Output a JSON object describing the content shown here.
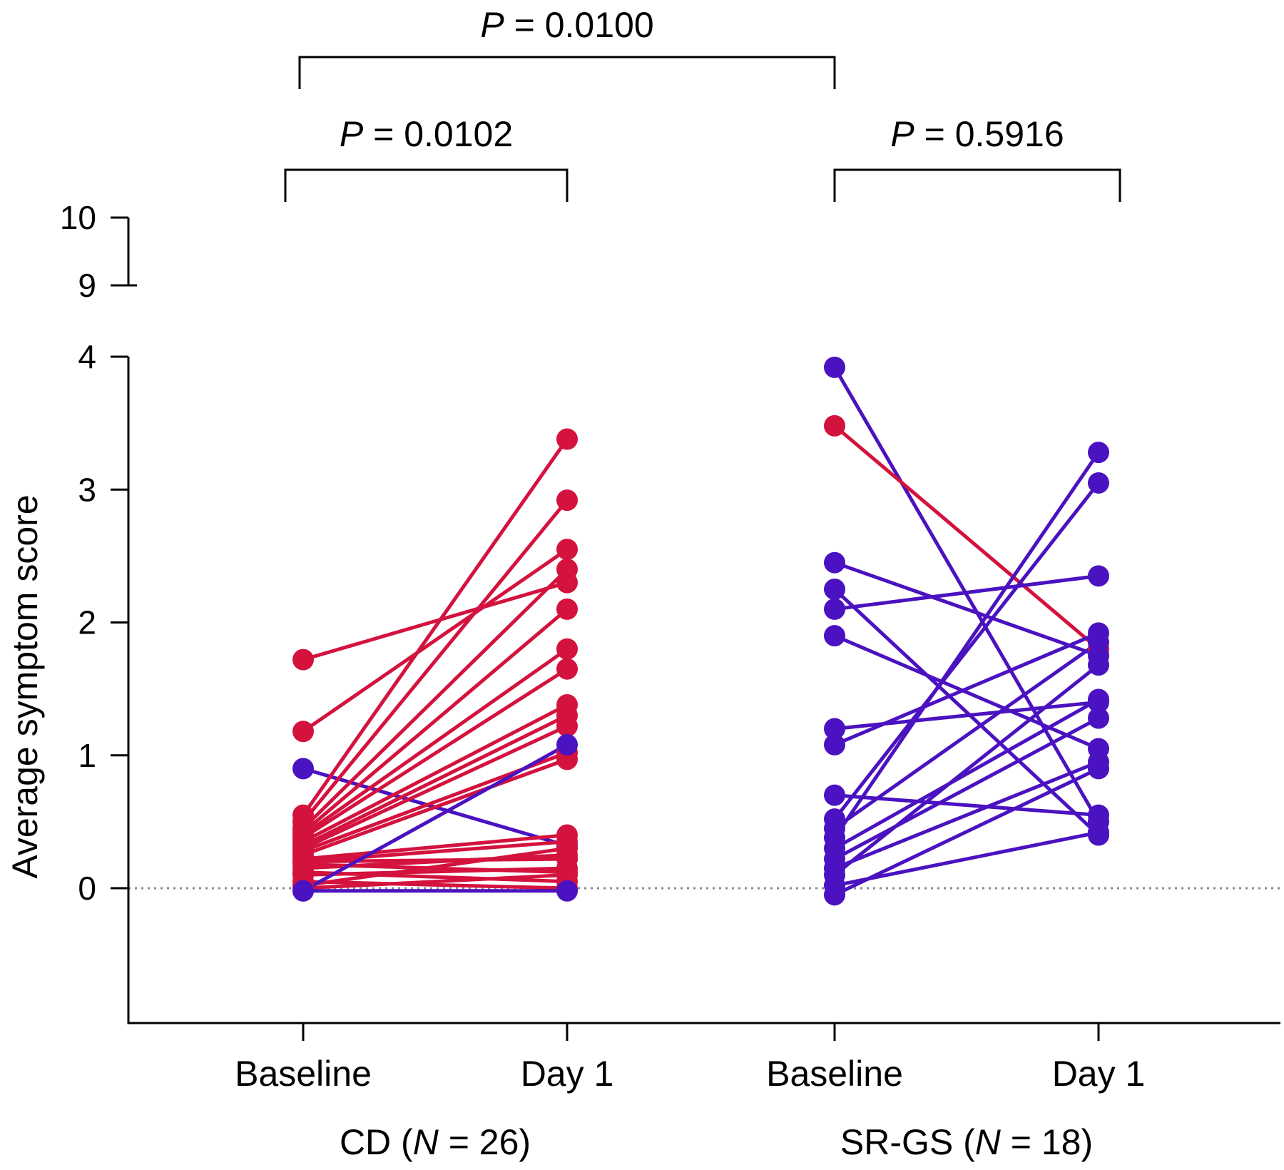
{
  "chart_data": {
    "type": "line",
    "title": "",
    "ylabel": "Average symptom score",
    "ylim": [
      -1,
      10
    ],
    "axis_break": [
      4,
      9
    ],
    "yticks_lower": [
      {
        "value": 0,
        "label": "0"
      },
      {
        "value": 1,
        "label": "1"
      },
      {
        "value": 2,
        "label": "2"
      },
      {
        "value": 3,
        "label": "3"
      },
      {
        "value": 4,
        "label": "4"
      }
    ],
    "yticks_upper": [
      {
        "value": 9,
        "label": "9"
      },
      {
        "value": 10,
        "label": "10"
      }
    ],
    "reference_line": 0,
    "categories": [
      "Baseline",
      "Day 1",
      "Baseline",
      "Day 1"
    ],
    "groups": [
      {
        "label_prefix": "CD (",
        "label_n": "N",
        "label_suffix": " = 26)"
      },
      {
        "label_prefix": "SR-GS (",
        "label_n": "N",
        "label_suffix": " = 18)"
      }
    ],
    "comparisons": [
      {
        "p_letter": "P",
        "p_value": " = 0.0100",
        "between": [
          "CD Baseline",
          "SR-GS Baseline"
        ]
      },
      {
        "p_letter": "P",
        "p_value": " = 0.0102",
        "between": [
          "CD Baseline",
          "CD Day 1"
        ]
      },
      {
        "p_letter": "P",
        "p_value": " = 0.5916",
        "between": [
          "SR-GS Baseline",
          "SR-GS Day 1"
        ]
      }
    ],
    "colors": {
      "red": "#d4123e",
      "blue": "#4a12c0"
    },
    "cd_pairs": [
      {
        "baseline": 1.72,
        "day1": 2.3,
        "color": "red"
      },
      {
        "baseline": 1.18,
        "day1": 2.55,
        "color": "red"
      },
      {
        "baseline": 0.9,
        "day1": 0.32,
        "color": "blue"
      },
      {
        "baseline": 0.55,
        "day1": 3.38,
        "color": "red"
      },
      {
        "baseline": 0.5,
        "day1": 2.92,
        "color": "red"
      },
      {
        "baseline": 0.45,
        "day1": 2.4,
        "color": "red"
      },
      {
        "baseline": 0.42,
        "day1": 2.1,
        "color": "red"
      },
      {
        "baseline": 0.4,
        "day1": 1.8,
        "color": "red"
      },
      {
        "baseline": 0.38,
        "day1": 1.65,
        "color": "red"
      },
      {
        "baseline": 0.35,
        "day1": 1.38,
        "color": "red"
      },
      {
        "baseline": 0.32,
        "day1": 1.3,
        "color": "red"
      },
      {
        "baseline": 0.3,
        "day1": 1.22,
        "color": "red"
      },
      {
        "baseline": 0.28,
        "day1": 1.02,
        "color": "red"
      },
      {
        "baseline": 0.25,
        "day1": 0.97,
        "color": "red"
      },
      {
        "baseline": 0.22,
        "day1": 0.4,
        "color": "red"
      },
      {
        "baseline": 0.2,
        "day1": 0.35,
        "color": "red"
      },
      {
        "baseline": 0.2,
        "day1": 0.22,
        "color": "red"
      },
      {
        "baseline": 0.18,
        "day1": 0.12,
        "color": "red"
      },
      {
        "baseline": 0.15,
        "day1": 0.25,
        "color": "red"
      },
      {
        "baseline": 0.12,
        "day1": 0.05,
        "color": "red"
      },
      {
        "baseline": 0.1,
        "day1": 0.15,
        "color": "red"
      },
      {
        "baseline": 0.05,
        "day1": 0.0,
        "color": "red"
      },
      {
        "baseline": 0.02,
        "day1": 0.3,
        "color": "red"
      },
      {
        "baseline": 0.0,
        "day1": 0.1,
        "color": "red"
      },
      {
        "baseline": -0.02,
        "day1": 1.08,
        "color": "blue"
      },
      {
        "baseline": -0.02,
        "day1": -0.02,
        "color": "blue"
      }
    ],
    "srgs_pairs": [
      {
        "baseline": 3.92,
        "day1": 0.5,
        "color": "blue"
      },
      {
        "baseline": 3.48,
        "day1": 1.8,
        "color": "red"
      },
      {
        "baseline": 2.45,
        "day1": 1.75,
        "color": "blue"
      },
      {
        "baseline": 2.25,
        "day1": 0.4,
        "color": "blue"
      },
      {
        "baseline": 2.1,
        "day1": 2.35,
        "color": "blue"
      },
      {
        "baseline": 1.9,
        "day1": 1.05,
        "color": "blue"
      },
      {
        "baseline": 1.2,
        "day1": 1.4,
        "color": "blue"
      },
      {
        "baseline": 1.08,
        "day1": 1.92,
        "color": "blue"
      },
      {
        "baseline": 0.7,
        "day1": 0.55,
        "color": "blue"
      },
      {
        "baseline": 0.52,
        "day1": 3.05,
        "color": "blue"
      },
      {
        "baseline": 0.45,
        "day1": 1.85,
        "color": "blue"
      },
      {
        "baseline": 0.38,
        "day1": 3.28,
        "color": "blue"
      },
      {
        "baseline": 0.3,
        "day1": 1.42,
        "color": "blue"
      },
      {
        "baseline": 0.22,
        "day1": 1.28,
        "color": "blue"
      },
      {
        "baseline": 0.15,
        "day1": 0.95,
        "color": "blue"
      },
      {
        "baseline": 0.1,
        "day1": 1.68,
        "color": "blue"
      },
      {
        "baseline": 0.02,
        "day1": 0.42,
        "color": "blue"
      },
      {
        "baseline": -0.05,
        "day1": 0.9,
        "color": "blue"
      }
    ]
  }
}
